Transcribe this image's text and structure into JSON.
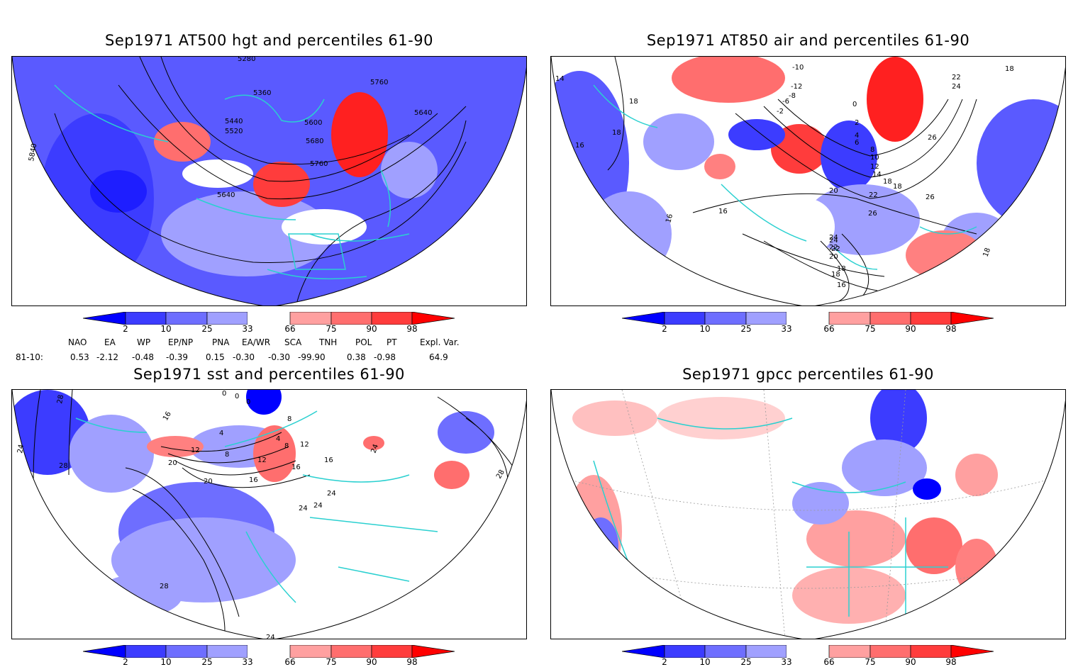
{
  "panels": [
    {
      "title": "Sep1971 AT500 hgt and percentiles 61-90",
      "contour_labels": [
        "5280",
        "5360",
        "5440",
        "5520",
        "5600",
        "5680",
        "5760",
        "5760",
        "5640",
        "5640",
        "5840"
      ]
    },
    {
      "title": "Sep1971 AT850 air and percentiles 61-90",
      "contour_labels": [
        "14",
        "18",
        "16",
        "18",
        "-10",
        "-12",
        "-8",
        "-6",
        "-2",
        "0",
        "2",
        "4",
        "6",
        "8",
        "10",
        "12",
        "14",
        "18",
        "18",
        "20",
        "22",
        "24",
        "22",
        "26",
        "26",
        "26",
        "16",
        "16",
        "16",
        "18",
        "18",
        "22",
        "24",
        "24",
        "22",
        "20",
        "18",
        "16",
        "18"
      ]
    },
    {
      "title": "Sep1971 sst and percentiles 61-90",
      "contour_labels": [
        "28",
        "24",
        "28",
        "16",
        "0",
        "0",
        "0",
        "4",
        "8",
        "4",
        "8",
        "8",
        "12",
        "12",
        "16",
        "20",
        "24",
        "12",
        "16",
        "16",
        "20",
        "24",
        "24",
        "24",
        "28",
        "28",
        "24"
      ]
    },
    {
      "title": "Sep1971 gpcc percentiles 61-90",
      "contour_labels": []
    }
  ],
  "colorbar": {
    "ticks": [
      "2",
      "10",
      "25",
      "33",
      "66",
      "75",
      "90",
      "98"
    ],
    "colors": [
      "#0000ff",
      "#3c3cff",
      "#6e6eff",
      "#a0a0ff",
      "#ffffff",
      "#ffa0a0",
      "#ff6e6e",
      "#ff3c3c",
      "#ff0000"
    ]
  },
  "indices": {
    "headers": [
      "NAO",
      "EA",
      "WP",
      "EP/NP",
      "PNA",
      "EA/WR",
      "SCA",
      "TNH",
      "POL",
      "PT",
      "Expl. Var."
    ],
    "row_label": "81-10:",
    "values": [
      "0.53",
      "-2.12",
      "-0.48",
      "-0.39",
      "0.15",
      "-0.30",
      "-0.30",
      "-99.90",
      "0.38",
      "-0.98",
      "64.9"
    ]
  }
}
